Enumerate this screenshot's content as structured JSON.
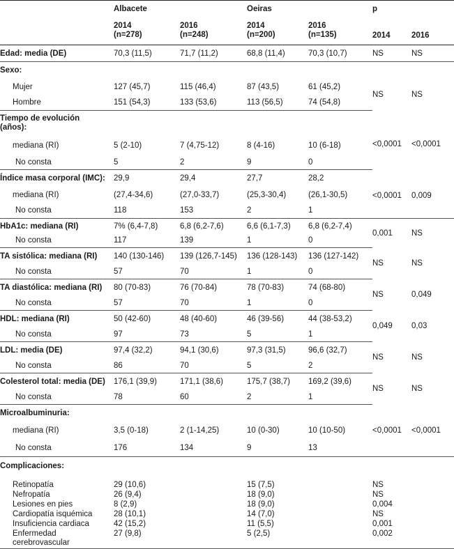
{
  "header": {
    "group_albacete": "Albacete",
    "group_oeiras": "Oeiras",
    "group_p": "p",
    "col_alb_2014_year": "2014",
    "col_alb_2014_n": "(n=278)",
    "col_alb_2016_year": "2016",
    "col_alb_2016_n": "(n=248)",
    "col_oei_2014_year": "2014",
    "col_oei_2014_n": "(n=200)",
    "col_oei_2016_year": "2016",
    "col_oei_2016_n": "(n=135)",
    "col_p_2014": "2014",
    "col_p_2016": "2016"
  },
  "rows": {
    "edad": {
      "label": "Edad: media (DE)",
      "a14": "70,3 (11,5)",
      "a16": "71,7 (11,2)",
      "o14": "68,8 (11,4)",
      "o16": "70,3 (10,7)",
      "p14": "NS",
      "p16": "NS"
    },
    "sexo": {
      "label": "Sexo:",
      "mujer": "Mujer",
      "hombre": "Hombre",
      "m_a14": "127 (45,7)",
      "m_a16": "115 (46,4)",
      "m_o14": "87 (43,5)",
      "m_o16": "61 (45,2)",
      "h_a14": "151 (54,3)",
      "h_a16": "133 (53,6)",
      "h_o14": "113 (56,5)",
      "h_o16": "74 (54,8)",
      "p14": "NS",
      "p16": "NS"
    },
    "tiempo": {
      "label_1": "Tiempo de evolución",
      "label_2": "(años):",
      "mediana": "mediana (RI)",
      "no_consta": "No consta",
      "a14": "5 (2-10)",
      "a16": "7 (4,75-12)",
      "o14": "8 (4-16)",
      "o16": "10 (6-18)",
      "nc_a14": "5",
      "nc_a16": "2",
      "nc_o14": "9",
      "nc_o16": "0",
      "p14": "<0,0001",
      "p16": "<0,0001"
    },
    "imc": {
      "label": "Índice masa corporal (IMC):",
      "mediana": "mediana (RI)",
      "no_consta": "No consta",
      "v_a14": "29,9",
      "v_a16": "29,4",
      "v_o14": "27,7",
      "v_o16": "28,2",
      "r_a14": "(27,4-34,6)",
      "r_a16": "(27,0-33,7)",
      "r_o14": "(25,3-30,4)",
      "r_o16": "(26,1-30,5)",
      "nc_a14": "118",
      "nc_a16": "153",
      "nc_o14": "2",
      "nc_o16": "1",
      "p14": "<0,0001",
      "p16": "0,009"
    },
    "hba1c": {
      "label": "HbA1c: mediana (RI)",
      "no_consta": "No consta",
      "a14": "7% (6,4-7,8)",
      "a16": "6,8 (6,2-7,6)",
      "o14": "6,6 (6,1-7,3)",
      "o16": "6,8 (6,2-7,4)",
      "nc_a14": "117",
      "nc_a16": "139",
      "nc_o14": "1",
      "nc_o16": "0",
      "p14": "0,001",
      "p16": "NS"
    },
    "tas": {
      "label": "TA sistólica: mediana (RI)",
      "no_consta": "No consta",
      "a14": "140 (130-146)",
      "a16": "139 (126,7-145)",
      "o14": "136 (128-143)",
      "o16": "136 (127-142)",
      "nc_a14": "57",
      "nc_a16": "70",
      "nc_o14": "1",
      "nc_o16": "0",
      "p14": "NS",
      "p16": "NS"
    },
    "tad": {
      "label": "TA diastólica: mediana (RI)",
      "no_consta": "No consta",
      "a14": "80 (70-83)",
      "a16": "76 (70-84)",
      "o14": "78 (70-83)",
      "o16": "74 (68-80)",
      "nc_a14": "57",
      "nc_a16": "70",
      "nc_o14": "1",
      "nc_o16": "0",
      "p14": "NS",
      "p16": "0,049"
    },
    "hdl": {
      "label": "HDL: mediana (RI)",
      "no_consta": "No consta",
      "a14": "50 (42-60)",
      "a16": "48 (40-60)",
      "o14": "46 (39-56)",
      "o16": "44 (38-53,2)",
      "nc_a14": "97",
      "nc_a16": "73",
      "nc_o14": "5",
      "nc_o16": "1",
      "p14": "0,049",
      "p16": "0,03"
    },
    "ldl": {
      "label": "LDL: media (DE)",
      "no_consta": "No consta",
      "a14": "97,4 (32,2)",
      "a16": "94,1 (30,6)",
      "o14": "97,3 (31,5)",
      "o16": "96,6 (32,7)",
      "nc_a14": "86",
      "nc_a16": "70",
      "nc_o14": "5",
      "nc_o16": "2",
      "p14": "NS",
      "p16": "NS"
    },
    "col": {
      "label": "Colesterol total: media (DE)",
      "no_consta": "No consta",
      "a14": "176,1 (39,9)",
      "a16": "171,1 (38,6)",
      "o14": "175,7 (38,7)",
      "o16": "169,2 (39,6)",
      "nc_a14": "78",
      "nc_a16": "60",
      "nc_o14": "2",
      "nc_o16": "1",
      "p14": "NS",
      "p16": "NS"
    },
    "micro": {
      "label": "Microalbuminuria:",
      "mediana": "mediana (RI)",
      "no_consta": "No consta",
      "a14": "3,5 (0-18)",
      "a16": "2 (1-14,25)",
      "o14": "10 (0-30)",
      "o16": "10 (10-50)",
      "nc_a14": "176",
      "nc_a16": "134",
      "nc_o14": "9",
      "nc_o16": "13",
      "p14": "<0,0001",
      "p16": "<0,0001"
    },
    "comp": {
      "label": "Complicaciones:",
      "items": [
        {
          "label": "Retinopatía",
          "a14": "29 (10,6)",
          "o14": "15 (7,5)",
          "p14": "NS"
        },
        {
          "label": "Nefropatía",
          "a14": "26 (9,4)",
          "o14": "18 (9,0)",
          "p14": "NS"
        },
        {
          "label": "Lesiones en pies",
          "a14": "8 (2,9)",
          "o14": "18 (9,0)",
          "p14": "0,004"
        },
        {
          "label": "Cardiopatía isquémica",
          "a14": "28 (10,1)",
          "o14": "14 (7,0)",
          "p14": "NS"
        },
        {
          "label": "Insuficiencia cardiaca",
          "a14": "42 (15,2)",
          "o14": "11 (5,5)",
          "p14": "0,001"
        },
        {
          "label_1": "Enfermedad",
          "label_2": "cerebrovascular",
          "a14": "27 (9,8)",
          "o14": "5 (2,5)",
          "p14": "0,002"
        }
      ]
    }
  }
}
